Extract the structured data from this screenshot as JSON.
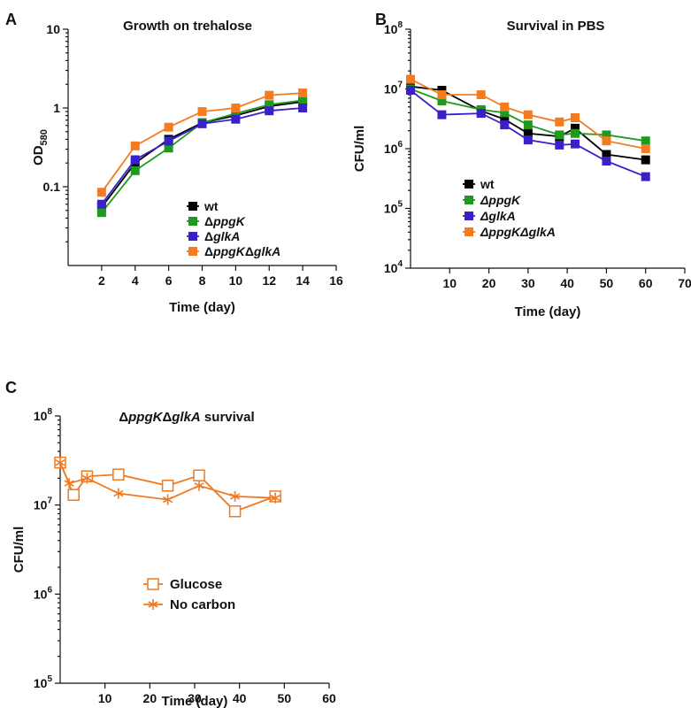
{
  "chart_data": [
    {
      "panel": "A",
      "type": "line",
      "title": "Growth on trehalose",
      "xlabel": "Time (day)",
      "ylabel": {
        "main": "OD",
        "sub": "580"
      },
      "yscale": "log",
      "xlim": [
        0,
        16
      ],
      "ylim": [
        0.01,
        10
      ],
      "xticks": [
        2,
        4,
        6,
        8,
        10,
        12,
        14,
        16
      ],
      "yticks": [
        {
          "v": 0.1,
          "label": "0.1"
        },
        {
          "v": 1,
          "label": "1"
        },
        {
          "v": 10,
          "label": "10"
        }
      ],
      "legend_position": "lower-right",
      "x": [
        2,
        4,
        6,
        8,
        10,
        12,
        14
      ],
      "series": [
        {
          "name": "wt",
          "name_parts": [
            {
              "t": "wt",
              "i": false
            }
          ],
          "color": "#000000",
          "marker": "square",
          "values": [
            0.055,
            0.2,
            0.4,
            0.65,
            0.8,
            1.05,
            1.2
          ]
        },
        {
          "name": "ΔppgK",
          "name_parts": [
            {
              "t": "Δ",
              "i": false
            },
            {
              "t": "ppgK",
              "i": true
            }
          ],
          "color": "#1f9a1f",
          "marker": "square",
          "values": [
            0.047,
            0.16,
            0.31,
            0.65,
            0.85,
            1.1,
            1.25
          ]
        },
        {
          "name": "ΔglkA",
          "name_parts": [
            {
              "t": "Δ",
              "i": false
            },
            {
              "t": "glkA",
              "i": true
            }
          ],
          "color": "#3a20c8",
          "marker": "square",
          "values": [
            0.06,
            0.22,
            0.38,
            0.63,
            0.72,
            0.92,
            1.0
          ]
        },
        {
          "name": "ΔppgKΔglkA",
          "name_parts": [
            {
              "t": "Δ",
              "i": false
            },
            {
              "t": "ppgK",
              "i": true
            },
            {
              "t": "Δ",
              "i": false
            },
            {
              "t": "glkA",
              "i": true
            }
          ],
          "color": "#f47b20",
          "marker": "square",
          "values": [
            0.085,
            0.33,
            0.57,
            0.9,
            1.0,
            1.45,
            1.55
          ]
        }
      ]
    },
    {
      "panel": "B",
      "type": "line",
      "title": "Survival in PBS",
      "xlabel": "Time (day)",
      "ylabel": "CFU/ml",
      "yscale": "log",
      "xlim": [
        0,
        70
      ],
      "ylim": [
        10000,
        100000000
      ],
      "xticks": [
        10,
        20,
        30,
        40,
        50,
        60,
        70
      ],
      "yticks": [
        {
          "v": 10000,
          "b": "10",
          "e": "4"
        },
        {
          "v": 100000,
          "b": "10",
          "e": "5"
        },
        {
          "v": 1000000,
          "b": "10",
          "e": "6"
        },
        {
          "v": 10000000,
          "b": "10",
          "e": "7"
        },
        {
          "v": 100000000,
          "b": "10",
          "e": "8"
        }
      ],
      "legend_position": "lower-left",
      "x": [
        0,
        8,
        18,
        24,
        30,
        38,
        42,
        50,
        60
      ],
      "series": [
        {
          "name": "wt",
          "name_parts": [
            {
              "t": "wt",
              "i": false
            }
          ],
          "color": "#000000",
          "marker": "square",
          "values": [
            11000000,
            9500000,
            4300000,
            3100000,
            1800000,
            1600000,
            2200000,
            800000,
            650000
          ]
        },
        {
          "name": "ΔppgK",
          "name_parts": [
            {
              "t": "ΔppgK",
              "i": true
            }
          ],
          "color": "#1f9a1f",
          "marker": "square",
          "values": [
            10000000,
            6300000,
            4500000,
            4000000,
            2500000,
            1700000,
            1800000,
            1700000,
            1350000
          ]
        },
        {
          "name": "ΔglkA",
          "name_parts": [
            {
              "t": "ΔglkA",
              "i": true
            }
          ],
          "color": "#3a20c8",
          "marker": "square",
          "values": [
            9500000,
            3700000,
            3900000,
            2500000,
            1400000,
            1150000,
            1200000,
            620000,
            340000
          ]
        },
        {
          "name": "ΔppgKΔglkA",
          "name_parts": [
            {
              "t": "ΔppgKΔglkA",
              "i": true
            }
          ],
          "color": "#f47b20",
          "marker": "square",
          "values": [
            14500000,
            8000000,
            8000000,
            5000000,
            3700000,
            2800000,
            3300000,
            1350000,
            1000000
          ]
        }
      ]
    },
    {
      "panel": "C",
      "type": "line",
      "title": "ΔppgKΔglkA survival",
      "title_parts": [
        {
          "t": "Δ",
          "i": false
        },
        {
          "t": "ppgK",
          "i": true
        },
        {
          "t": "Δ",
          "i": false
        },
        {
          "t": "glkA",
          "i": true
        },
        {
          "t": " survival",
          "i": false
        }
      ],
      "xlabel": "Time (day)",
      "ylabel": "CFU/ml",
      "yscale": "log",
      "xlim": [
        0,
        60
      ],
      "ylim": [
        100000,
        100000000
      ],
      "xticks": [
        10,
        20,
        30,
        40,
        50,
        60
      ],
      "yticks": [
        {
          "v": 100000,
          "b": "10",
          "e": "5"
        },
        {
          "v": 1000000,
          "b": "10",
          "e": "6"
        },
        {
          "v": 10000000,
          "b": "10",
          "e": "7"
        },
        {
          "v": 100000000,
          "b": "10",
          "e": "8"
        }
      ],
      "legend_position": "lower-center",
      "series": [
        {
          "name": "Glucose",
          "name_parts": [
            {
              "t": "Glucose",
              "i": false
            }
          ],
          "color": "#f07a22",
          "marker": "open-square",
          "x": [
            0,
            3,
            6,
            13,
            24,
            31,
            39,
            48
          ],
          "values": [
            30000000,
            13000000,
            21000000,
            22000000,
            16500000,
            21500000,
            8500000,
            12500000
          ]
        },
        {
          "name": "No carbon",
          "name_parts": [
            {
              "t": "No carbon",
              "i": false
            }
          ],
          "color": "#f07a22",
          "marker": "asterisk",
          "x": [
            0,
            2,
            6,
            13,
            24,
            31,
            39,
            48
          ],
          "values": [
            30000000,
            17500000,
            20000000,
            13500000,
            11500000,
            16500000,
            12500000,
            12000000
          ]
        }
      ]
    }
  ]
}
